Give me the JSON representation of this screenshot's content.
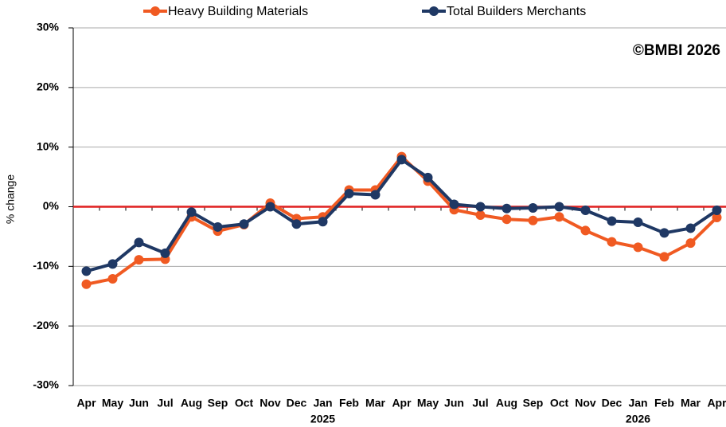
{
  "chart_data": {
    "type": "line",
    "y_label": "% change",
    "annotation": "©BMBI 2026",
    "categories": [
      "Apr",
      "May",
      "Jun",
      "Jul",
      "Aug",
      "Sep",
      "Oct",
      "Nov",
      "Dec",
      "Jan",
      "Feb",
      "Mar",
      "Apr",
      "May",
      "Jun",
      "Jul",
      "Aug",
      "Sep",
      "Oct",
      "Nov",
      "Dec",
      "Jan",
      "Feb",
      "Mar",
      "Apr"
    ],
    "year_labels": [
      {
        "label": "2025",
        "category_index": 9
      },
      {
        "label": "2026",
        "category_index": 21
      }
    ],
    "series": [
      {
        "name": "Heavy Building Materials",
        "color": "#f05a22",
        "values": [
          -13.0,
          -12.1,
          -8.9,
          -8.8,
          -1.7,
          -4.1,
          -3.0,
          0.6,
          -2.0,
          -1.7,
          2.8,
          2.8,
          8.4,
          4.3,
          -0.5,
          -1.4,
          -2.1,
          -2.3,
          -1.7,
          -4.0,
          -5.9,
          -6.8,
          -8.4,
          -6.1,
          -1.8
        ]
      },
      {
        "name": "Total Builders Merchants",
        "color": "#1f3864",
        "values": [
          -10.8,
          -9.6,
          -6.0,
          -7.8,
          -0.9,
          -3.4,
          -2.9,
          0.0,
          -2.9,
          -2.5,
          2.2,
          2.0,
          7.9,
          4.9,
          0.4,
          0.0,
          -0.3,
          -0.2,
          0.0,
          -0.6,
          -2.4,
          -2.6,
          -4.4,
          -3.6,
          -0.6
        ]
      }
    ],
    "ylim": [
      -30,
      30
    ],
    "yticks": [
      {
        "value": -30,
        "label": "-30%"
      },
      {
        "value": -20,
        "label": "-20%"
      },
      {
        "value": -10,
        "label": "-10%"
      },
      {
        "value": 0,
        "label": "0%"
      },
      {
        "value": 10,
        "label": "10%"
      },
      {
        "value": 20,
        "label": "20%"
      },
      {
        "value": 30,
        "label": "30%"
      }
    ],
    "grid": true,
    "zero_line_color": "#e02020"
  }
}
